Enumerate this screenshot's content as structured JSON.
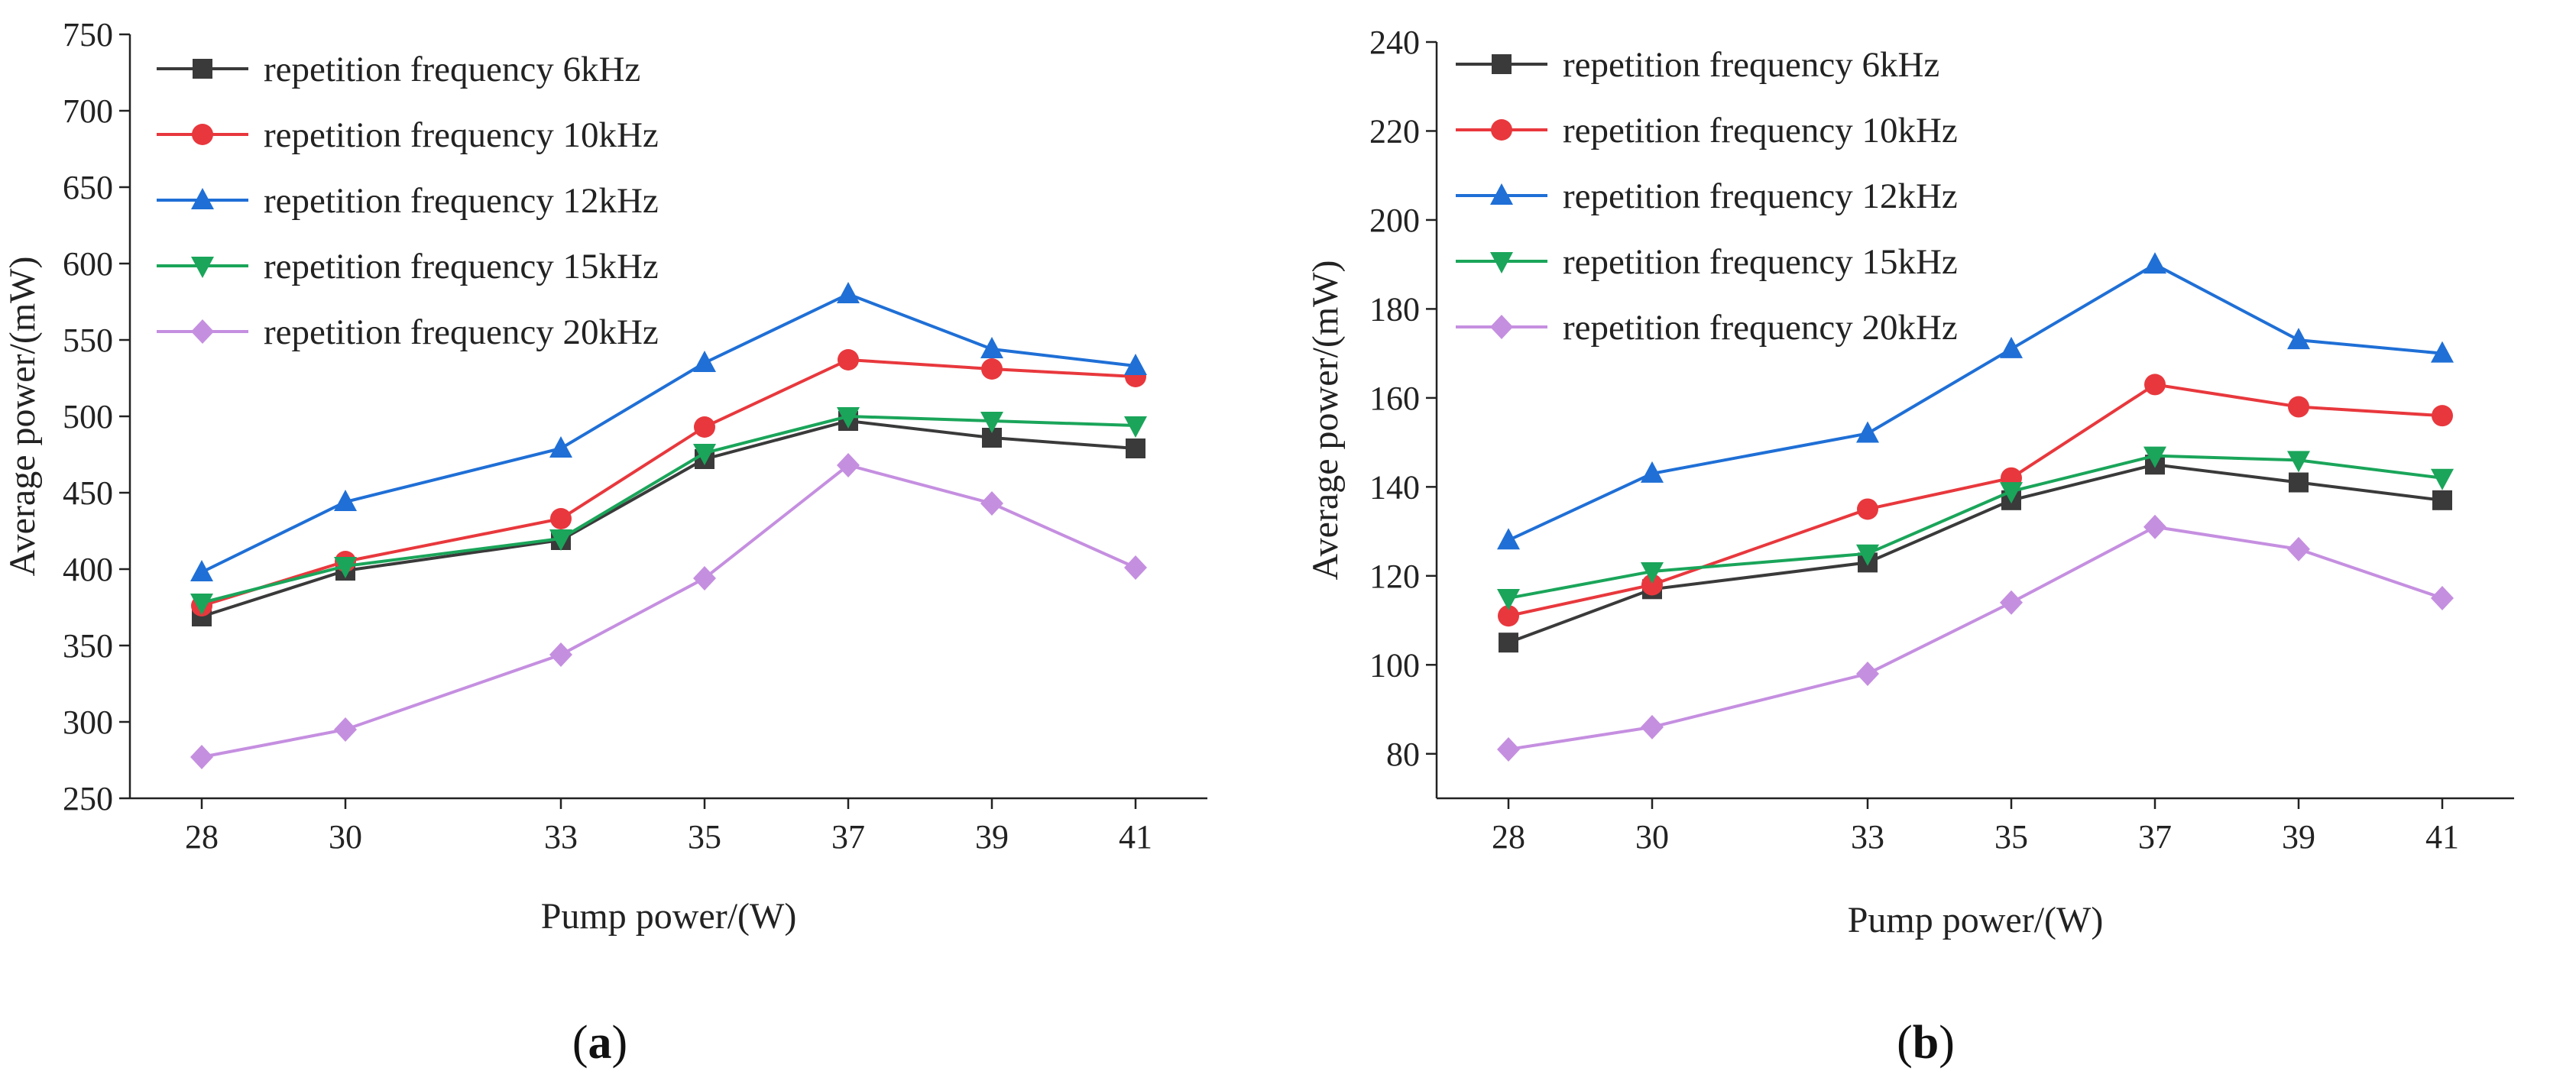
{
  "chart_data": [
    {
      "type": "line",
      "panel_label": "a",
      "xlabel": "Pump power/(W)",
      "ylabel": "Average power/(mW)",
      "x": [
        28,
        30,
        33,
        35,
        37,
        39,
        41
      ],
      "xticks": [
        "28",
        "30",
        "33",
        "35",
        "37",
        "39",
        "41"
      ],
      "xlim": [
        27,
        42
      ],
      "ylim": [
        250,
        750
      ],
      "yticks": [
        250,
        300,
        350,
        400,
        450,
        500,
        550,
        600,
        650,
        700,
        750
      ],
      "legend_position": "top-left",
      "series": [
        {
          "name": "repetition frequency 6kHz",
          "color": "#3a3a3a",
          "marker": "square",
          "values": [
            369,
            399,
            419,
            472,
            497,
            486,
            479
          ]
        },
        {
          "name": "repetition frequency 10kHz",
          "color": "#e8383d",
          "marker": "circle",
          "values": [
            376,
            405,
            433,
            493,
            537,
            531,
            526
          ]
        },
        {
          "name": "repetition frequency 12kHz",
          "color": "#1f6fd6",
          "marker": "triangle-up",
          "values": [
            398,
            444,
            479,
            535,
            580,
            544,
            533
          ]
        },
        {
          "name": "repetition frequency 15kHz",
          "color": "#1aa55a",
          "marker": "triangle-down",
          "values": [
            378,
            402,
            420,
            476,
            500,
            497,
            494
          ]
        },
        {
          "name": "repetition frequency 20kHz",
          "color": "#c58fe0",
          "marker": "diamond",
          "values": [
            277,
            295,
            344,
            394,
            468,
            443,
            401
          ]
        }
      ]
    },
    {
      "type": "line",
      "panel_label": "b",
      "xlabel": "Pump power/(W)",
      "ylabel": "Average power/(mW)",
      "x": [
        28,
        30,
        33,
        35,
        37,
        39,
        41
      ],
      "xticks": [
        "28",
        "30",
        "33",
        "35",
        "37",
        "39",
        "41"
      ],
      "xlim": [
        27,
        42
      ],
      "ylim": [
        70,
        240
      ],
      "yticks": [
        80,
        100,
        120,
        140,
        160,
        180,
        200,
        220,
        240
      ],
      "legend_position": "top-left",
      "series": [
        {
          "name": "repetition frequency 6kHz",
          "color": "#3a3a3a",
          "marker": "square",
          "values": [
            105,
            117,
            123,
            137,
            145,
            141,
            137
          ]
        },
        {
          "name": "repetition frequency 10kHz",
          "color": "#e8383d",
          "marker": "circle",
          "values": [
            111,
            118,
            135,
            142,
            163,
            158,
            156
          ]
        },
        {
          "name": "repetition frequency 12kHz",
          "color": "#1f6fd6",
          "marker": "triangle-up",
          "values": [
            128,
            143,
            152,
            171,
            190,
            173,
            170
          ]
        },
        {
          "name": "repetition frequency 15kHz",
          "color": "#1aa55a",
          "marker": "triangle-down",
          "values": [
            115,
            121,
            125,
            139,
            147,
            146,
            142
          ]
        },
        {
          "name": "repetition frequency 20kHz",
          "color": "#c58fe0",
          "marker": "diamond",
          "values": [
            81,
            86,
            98,
            114,
            131,
            126,
            115
          ]
        }
      ]
    }
  ]
}
